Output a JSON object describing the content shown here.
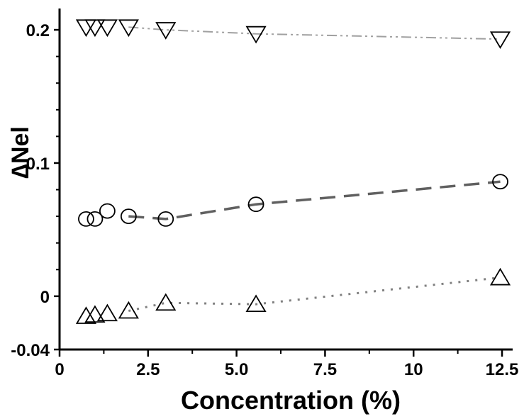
{
  "chart_data": {
    "type": "scatter",
    "title": "",
    "xlabel": "Concentration (%)",
    "ylabel": "Nel",
    "ylabel_prefix": "∆",
    "xlim": [
      0,
      12.8
    ],
    "ylim": [
      -0.04,
      0.216
    ],
    "x_ticks": [
      0,
      2.5,
      5.0,
      7.5,
      10,
      12.5
    ],
    "x_tick_labels": [
      "0",
      "2.5",
      "5.0",
      "7.5",
      "10",
      "12.5"
    ],
    "y_ticks": [
      -0.04,
      0,
      0.1,
      0.2
    ],
    "y_tick_labels": [
      "-0.04",
      "0",
      "0.1",
      "0.2"
    ],
    "grid": false,
    "legend": "none",
    "series": [
      {
        "marker": "triangle-down",
        "line_style": "dash-dot-dot",
        "line_color": "#a0a0a0",
        "x": [
          0.75,
          1.0,
          1.35,
          1.95,
          3.0,
          5.55,
          12.45
        ],
        "y": [
          0.202,
          0.202,
          0.202,
          0.202,
          0.2,
          0.197,
          0.193
        ]
      },
      {
        "marker": "circle",
        "line_style": "dash",
        "line_color": "#606060",
        "x": [
          0.75,
          1.0,
          1.35,
          1.95,
          3.0,
          5.55,
          12.45
        ],
        "y": [
          0.058,
          0.058,
          0.064,
          0.06,
          0.058,
          0.069,
          0.086
        ]
      },
      {
        "marker": "triangle-up",
        "line_style": "dot",
        "line_color": "#808080",
        "x": [
          0.75,
          1.0,
          1.35,
          1.95,
          3.0,
          5.55,
          12.45
        ],
        "y": [
          -0.015,
          -0.014,
          -0.013,
          -0.011,
          -0.005,
          -0.006,
          0.014
        ]
      }
    ]
  }
}
